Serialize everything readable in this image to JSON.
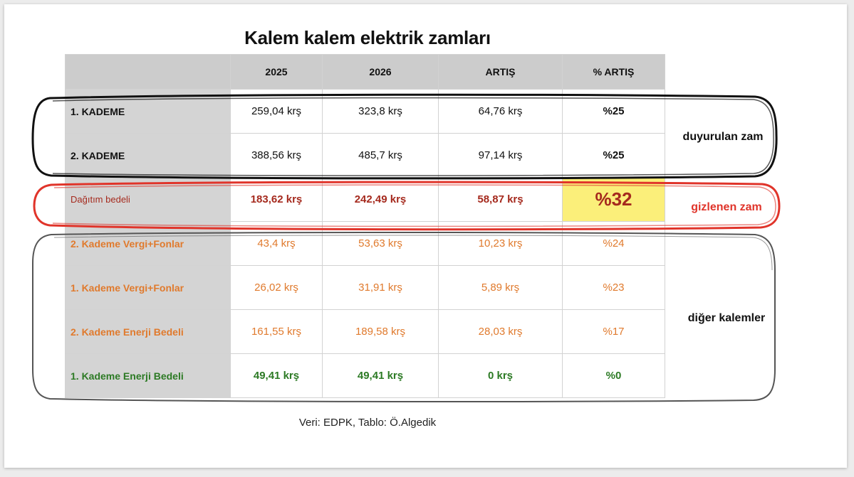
{
  "title": "Kalem kalem elektrik zamları",
  "headers": [
    "",
    "2025",
    "2026",
    "ARTIŞ",
    "% ARTIŞ"
  ],
  "rows": [
    {
      "label": "1. KADEME",
      "y2025": "259,04 krş",
      "y2026": "323,8 krş",
      "artis": "64,76 krş",
      "pct": "%25",
      "color": "#111111"
    },
    {
      "label": "2. KADEME",
      "y2025": "388,56 krş",
      "y2026": "485,7 krş",
      "artis": "97,14 krş",
      "pct": "%25",
      "color": "#111111"
    },
    {
      "label": "Dağıtım bedeli",
      "y2025": "183,62 krş",
      "y2026": "242,49 krş",
      "artis": "58,87 krş",
      "pct": "%32",
      "color": "#a52a1e"
    },
    {
      "label": "2. Kademe Vergi+Fonlar",
      "y2025": "43,4 krş",
      "y2026": "53,63 krş",
      "artis": "10,23 krş",
      "pct": "%24",
      "color": "#e07a2d"
    },
    {
      "label": "1. Kademe Vergi+Fonlar",
      "y2025": "26,02 krş",
      "y2026": "31,91 krş",
      "artis": "5,89 krş",
      "pct": "%23",
      "color": "#e07a2d"
    },
    {
      "label": "2. Kademe Enerji Bedeli",
      "y2025": "161,55 krş",
      "y2026": "189,58 krş",
      "artis": "28,03 krş",
      "pct": "%17",
      "color": "#e07a2d"
    },
    {
      "label": "1. Kademe Enerji Bedeli",
      "y2025": "49,41 krş",
      "y2026": "49,41 krş",
      "artis": "0 krş",
      "pct": "%0",
      "color": "#2c7a24"
    }
  ],
  "groups": {
    "announced": "duyurulan zam",
    "hidden": "gizlenen zam",
    "other": "diğer kalemler"
  },
  "source": "Veri: EDPK, Tablo: Ö.Algedik",
  "colors": {
    "highlight": "#fbef7a",
    "red": "#a52a1e",
    "orange": "#e07a2d",
    "green": "#2c7a24"
  }
}
